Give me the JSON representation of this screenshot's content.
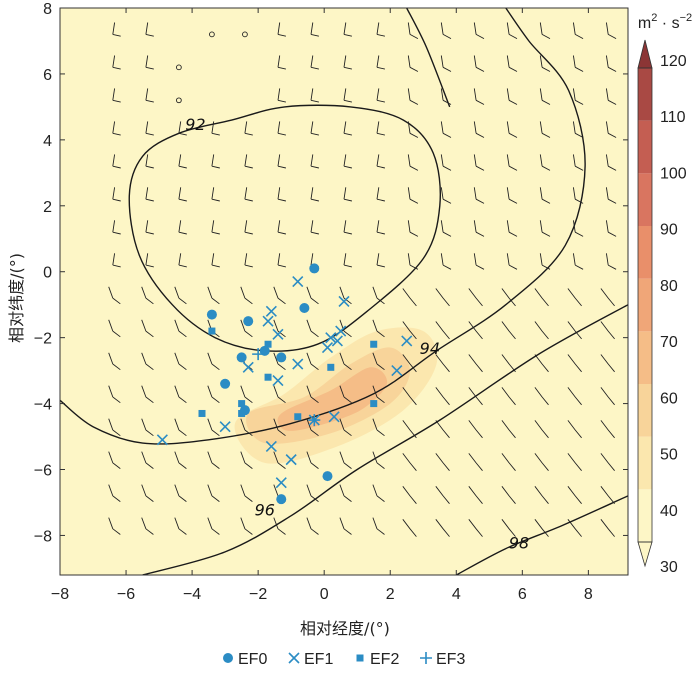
{
  "chart_data": {
    "type": "scatter",
    "title": "",
    "xlabel": "相对经度/(°)",
    "ylabel": "相对纬度/(°)",
    "xlim": [
      -8,
      9.2
    ],
    "ylim": [
      -9.2,
      8
    ],
    "xticks": [
      -8,
      -6,
      -4,
      -2,
      0,
      2,
      4,
      6,
      8
    ],
    "yticks": [
      -8,
      -6,
      -4,
      -2,
      0,
      2,
      4,
      6,
      8
    ],
    "colorbar": {
      "unit_base": "m",
      "unit_sup1": "2",
      "unit_dot": " · ",
      "unit_base2": "s",
      "unit_sup2": "−2",
      "ticks": [
        30,
        40,
        50,
        60,
        70,
        80,
        90,
        100,
        110,
        120
      ],
      "colors": [
        "#fdf6c6",
        "#fbe7ae",
        "#f8d49a",
        "#f5bd87",
        "#f0a678",
        "#e98f6a",
        "#d97560",
        "#c45e52",
        "#a94944",
        "#8b3535"
      ]
    },
    "contours": [
      {
        "label": "92",
        "level": 92,
        "points": [
          [
            -4.4,
            4.2
          ],
          [
            -5.5,
            3.5
          ],
          [
            -5.9,
            2.3
          ],
          [
            -5.6,
            0.5
          ],
          [
            -4.6,
            -1.0
          ],
          [
            -3.3,
            -2.0
          ],
          [
            -1.8,
            -2.4
          ],
          [
            -0.2,
            -2.2
          ],
          [
            1.3,
            -1.2
          ],
          [
            3.0,
            0.4
          ],
          [
            3.5,
            2.0
          ],
          [
            3.3,
            3.6
          ],
          [
            2.4,
            4.6
          ],
          [
            0.8,
            5.0
          ],
          [
            -1.2,
            5.0
          ],
          [
            -2.8,
            4.6
          ],
          [
            -4.4,
            4.2
          ]
        ]
      },
      {
        "label": "94",
        "level": 94,
        "points": [
          [
            -8.0,
            -3.9
          ],
          [
            -7.0,
            -4.7
          ],
          [
            -5.5,
            -5.2
          ],
          [
            -3.5,
            -5.1
          ],
          [
            -1.0,
            -4.6
          ],
          [
            1.5,
            -3.7
          ],
          [
            3.4,
            -2.4
          ],
          [
            5.5,
            -1.0
          ],
          [
            7.3,
            0.8
          ],
          [
            7.9,
            3.2
          ],
          [
            7.4,
            5.5
          ],
          [
            6.2,
            7.0
          ],
          [
            5.5,
            8.0
          ]
        ]
      },
      {
        "label": "96",
        "level": 96,
        "points": [
          [
            -5.5,
            -9.2
          ],
          [
            -3.0,
            -8.5
          ],
          [
            -1.0,
            -7.4
          ],
          [
            1.0,
            -6.0
          ],
          [
            3.5,
            -4.5
          ],
          [
            6.5,
            -2.5
          ],
          [
            9.2,
            -1.0
          ]
        ]
      },
      {
        "label": "98",
        "level": 98,
        "points": [
          [
            4.0,
            -9.2
          ],
          [
            5.5,
            -8.4
          ],
          [
            7.2,
            -7.7
          ],
          [
            9.2,
            -6.8
          ]
        ]
      },
      {
        "label": "",
        "level": 90,
        "points": [
          [
            2.5,
            8.0
          ],
          [
            3.1,
            6.8
          ],
          [
            3.8,
            5.0
          ]
        ]
      }
    ],
    "contour_label_positions": [
      [
        -3.9,
        4.3
      ],
      [
        3.2,
        -2.5
      ],
      [
        -1.8,
        -7.4
      ],
      [
        5.9,
        -8.4
      ]
    ],
    "shading": [
      {
        "level": 35,
        "points": [
          [
            -7.8,
            -8.8
          ],
          [
            -4.5,
            -6.2
          ],
          [
            -2.6,
            -5.6
          ],
          [
            -1.0,
            -4.2
          ],
          [
            0.9,
            -2.2
          ],
          [
            2.6,
            -0.6
          ],
          [
            4.0,
            0.5
          ],
          [
            6.2,
            -0.3
          ],
          [
            6.6,
            -2.0
          ],
          [
            5.0,
            -3.8
          ],
          [
            2.8,
            -5.5
          ],
          [
            0.2,
            -7.1
          ],
          [
            -3.8,
            -8.9
          ],
          [
            -7.8,
            -9.2
          ]
        ]
      },
      {
        "level": 35,
        "points": [
          [
            6.0,
            -6.6
          ],
          [
            7.6,
            -6.8
          ],
          [
            8.6,
            -7.6
          ],
          [
            8.3,
            -8.6
          ],
          [
            6.8,
            -8.4
          ],
          [
            6.0,
            -7.5
          ]
        ]
      },
      {
        "level": 45,
        "points": [
          [
            -2.7,
            -4.6
          ],
          [
            -1.2,
            -3.7
          ],
          [
            0.2,
            -2.6
          ],
          [
            1.6,
            -1.8
          ],
          [
            3.0,
            -1.8
          ],
          [
            3.4,
            -2.8
          ],
          [
            2.4,
            -4.2
          ],
          [
            0.4,
            -5.3
          ],
          [
            -1.8,
            -5.8
          ]
        ]
      },
      {
        "level": 55,
        "points": [
          [
            -2.3,
            -4.3
          ],
          [
            -0.6,
            -3.8
          ],
          [
            0.8,
            -2.8
          ],
          [
            2.0,
            -2.3
          ],
          [
            2.6,
            -3.0
          ],
          [
            2.0,
            -4.0
          ],
          [
            0.2,
            -4.9
          ],
          [
            -1.8,
            -5.2
          ]
        ]
      },
      {
        "level": 65,
        "points": [
          [
            -1.3,
            -4.3
          ],
          [
            0.2,
            -3.6
          ],
          [
            1.4,
            -2.9
          ],
          [
            1.9,
            -3.4
          ],
          [
            1.1,
            -4.2
          ],
          [
            -0.3,
            -4.7
          ],
          [
            -1.2,
            -4.8
          ]
        ]
      }
    ],
    "wind_barbs": {
      "x": [
        -6,
        -4,
        -2,
        0,
        2,
        4,
        6,
        8
      ],
      "y": [
        -8,
        -6,
        -4,
        -2,
        0,
        2,
        4,
        6
      ]
    },
    "series": [
      {
        "name": "EF0",
        "marker": "circle",
        "color": "#2b8cc4",
        "points": [
          [
            -3.4,
            -1.3
          ],
          [
            -2.3,
            -1.5
          ],
          [
            -1.8,
            -2.4
          ],
          [
            -2.5,
            -2.6
          ],
          [
            -1.3,
            -2.6
          ],
          [
            -0.6,
            -1.1
          ],
          [
            -0.3,
            0.1
          ],
          [
            -3.0,
            -3.4
          ],
          [
            -2.4,
            -4.2
          ],
          [
            -1.3,
            -6.9
          ],
          [
            0.1,
            -6.2
          ]
        ]
      },
      {
        "name": "EF1",
        "marker": "x",
        "color": "#2b8cc4",
        "points": [
          [
            -4.9,
            -5.1
          ],
          [
            -3.0,
            -4.7
          ],
          [
            -2.3,
            -2.9
          ],
          [
            -1.7,
            -1.5
          ],
          [
            -1.6,
            -1.2
          ],
          [
            -1.4,
            -1.9
          ],
          [
            -1.4,
            -3.3
          ],
          [
            -1.3,
            -6.4
          ],
          [
            -1.0,
            -5.7
          ],
          [
            -0.8,
            -2.8
          ],
          [
            -0.8,
            -0.3
          ],
          [
            0.1,
            -2.3
          ],
          [
            0.2,
            -2.0
          ],
          [
            0.4,
            -2.1
          ],
          [
            0.5,
            -1.8
          ],
          [
            0.6,
            -0.9
          ],
          [
            -1.6,
            -5.3
          ],
          [
            2.2,
            -3.0
          ],
          [
            2.5,
            -2.1
          ],
          [
            -0.3,
            -4.5
          ],
          [
            0.3,
            -4.4
          ]
        ]
      },
      {
        "name": "EF2",
        "marker": "square",
        "color": "#2b8cc4",
        "points": [
          [
            -3.4,
            -1.8
          ],
          [
            -3.7,
            -4.3
          ],
          [
            -2.5,
            -4.0
          ],
          [
            -2.5,
            -4.3
          ],
          [
            -1.7,
            -3.2
          ],
          [
            -1.7,
            -2.2
          ],
          [
            -0.8,
            -4.4
          ],
          [
            0.2,
            -2.9
          ],
          [
            1.5,
            -2.2
          ],
          [
            1.5,
            -4.0
          ]
        ]
      },
      {
        "name": "EF3",
        "marker": "plus",
        "color": "#2b8cc4",
        "points": [
          [
            -2.0,
            -2.5
          ],
          [
            -0.3,
            -4.5
          ]
        ]
      }
    ]
  }
}
